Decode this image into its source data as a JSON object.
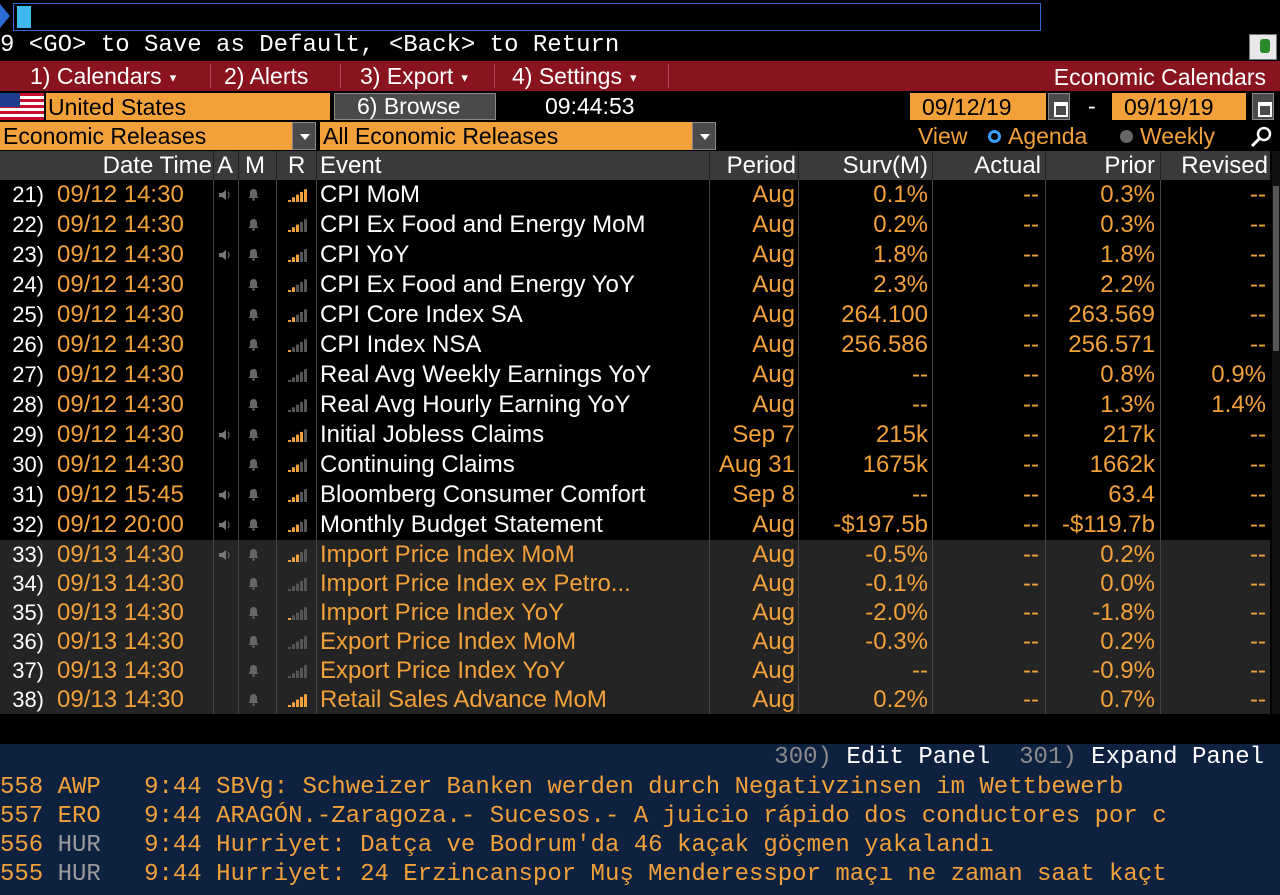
{
  "command": {
    "hint": "9 <GO> to Save as Default, <Back> to Return"
  },
  "menu": {
    "items": [
      {
        "label": "1) Calendars",
        "dropdown": true
      },
      {
        "label": "2) Alerts",
        "dropdown": false
      },
      {
        "label": "3) Export",
        "dropdown": true
      },
      {
        "label": "4) Settings",
        "dropdown": true
      }
    ],
    "title": "Economic Calendars"
  },
  "toolbar": {
    "country": "United States",
    "browse_label": "6) Browse",
    "time": "09:44:53",
    "date_from": "09/12/19",
    "date_to": "09/19/19",
    "date_separator": "-"
  },
  "filters": {
    "category": "Economic Releases",
    "releases": "All Economic Releases",
    "view_label": "View",
    "view_options": [
      "Agenda",
      "Weekly"
    ],
    "selected_view": "Agenda"
  },
  "table": {
    "headers": {
      "datetime": "Date Time",
      "a": "A",
      "m": "M",
      "r": "R",
      "event": "Event",
      "period": "Period",
      "surv": "Surv(M)",
      "actual": "Actual",
      "prior": "Prior",
      "revised": "Revised"
    },
    "rows": [
      {
        "idx": "21)",
        "datetime": "09/12 14:30",
        "audio": true,
        "rel": 5,
        "event": "CPI MoM",
        "period": "Aug",
        "surv": "0.1%",
        "actual": "--",
        "prior": "0.3%",
        "revised": "--",
        "hl": false
      },
      {
        "idx": "22)",
        "datetime": "09/12 14:30",
        "audio": false,
        "rel": 3,
        "event": "CPI Ex Food and Energy MoM",
        "period": "Aug",
        "surv": "0.2%",
        "actual": "--",
        "prior": "0.3%",
        "revised": "--",
        "hl": false
      },
      {
        "idx": "23)",
        "datetime": "09/12 14:30",
        "audio": true,
        "rel": 3,
        "event": "CPI YoY",
        "period": "Aug",
        "surv": "1.8%",
        "actual": "--",
        "prior": "1.8%",
        "revised": "--",
        "hl": false
      },
      {
        "idx": "24)",
        "datetime": "09/12 14:30",
        "audio": false,
        "rel": 2,
        "event": "CPI Ex Food and Energy YoY",
        "period": "Aug",
        "surv": "2.3%",
        "actual": "--",
        "prior": "2.2%",
        "revised": "--",
        "hl": false
      },
      {
        "idx": "25)",
        "datetime": "09/12 14:30",
        "audio": false,
        "rel": 2,
        "event": "CPI Core Index SA",
        "period": "Aug",
        "surv": "264.100",
        "actual": "--",
        "prior": "263.569",
        "revised": "--",
        "hl": false
      },
      {
        "idx": "26)",
        "datetime": "09/12 14:30",
        "audio": false,
        "rel": 1,
        "event": "CPI Index NSA",
        "period": "Aug",
        "surv": "256.586",
        "actual": "--",
        "prior": "256.571",
        "revised": "--",
        "hl": false
      },
      {
        "idx": "27)",
        "datetime": "09/12 14:30",
        "audio": false,
        "rel": 0,
        "event": "Real Avg Weekly Earnings YoY",
        "period": "Aug",
        "surv": "--",
        "actual": "--",
        "prior": "0.8%",
        "revised": "0.9%",
        "hl": false
      },
      {
        "idx": "28)",
        "datetime": "09/12 14:30",
        "audio": false,
        "rel": 0,
        "event": "Real Avg Hourly Earning YoY",
        "period": "Aug",
        "surv": "--",
        "actual": "--",
        "prior": "1.3%",
        "revised": "1.4%",
        "hl": false
      },
      {
        "idx": "29)",
        "datetime": "09/12 14:30",
        "audio": true,
        "rel": 4,
        "event": "Initial Jobless Claims",
        "period": "Sep 7",
        "surv": "215k",
        "actual": "--",
        "prior": "217k",
        "revised": "--",
        "hl": false
      },
      {
        "idx": "30)",
        "datetime": "09/12 14:30",
        "audio": false,
        "rel": 3,
        "event": "Continuing Claims",
        "period": "Aug 31",
        "surv": "1675k",
        "actual": "--",
        "prior": "1662k",
        "revised": "--",
        "hl": false
      },
      {
        "idx": "31)",
        "datetime": "09/12 15:45",
        "audio": true,
        "rel": 3,
        "event": "Bloomberg Consumer Comfort",
        "period": "Sep 8",
        "surv": "--",
        "actual": "--",
        "prior": "63.4",
        "revised": "--",
        "hl": false
      },
      {
        "idx": "32)",
        "datetime": "09/12 20:00",
        "audio": true,
        "rel": 3,
        "event": "Monthly Budget Statement",
        "period": "Aug",
        "surv": "-$197.5b",
        "actual": "--",
        "prior": "-$119.7b",
        "revised": "--",
        "hl": false
      },
      {
        "idx": "33)",
        "datetime": "09/13 14:30",
        "audio": true,
        "rel": 3,
        "event": "Import Price Index MoM",
        "period": "Aug",
        "surv": "-0.5%",
        "actual": "--",
        "prior": "0.2%",
        "revised": "--",
        "hl": true
      },
      {
        "idx": "34)",
        "datetime": "09/13 14:30",
        "audio": false,
        "rel": 0,
        "event": "Import Price Index ex Petro...",
        "period": "Aug",
        "surv": "-0.1%",
        "actual": "--",
        "prior": "0.0%",
        "revised": "--",
        "hl": true
      },
      {
        "idx": "35)",
        "datetime": "09/13 14:30",
        "audio": false,
        "rel": 1,
        "event": "Import Price Index YoY",
        "period": "Aug",
        "surv": "-2.0%",
        "actual": "--",
        "prior": "-1.8%",
        "revised": "--",
        "hl": true
      },
      {
        "idx": "36)",
        "datetime": "09/13 14:30",
        "audio": false,
        "rel": 0,
        "event": "Export Price Index MoM",
        "period": "Aug",
        "surv": "-0.3%",
        "actual": "--",
        "prior": "0.2%",
        "revised": "--",
        "hl": true
      },
      {
        "idx": "37)",
        "datetime": "09/13 14:30",
        "audio": false,
        "rel": 0,
        "event": "Export Price Index YoY",
        "period": "Aug",
        "surv": "--",
        "actual": "--",
        "prior": "-0.9%",
        "revised": "--",
        "hl": true
      },
      {
        "idx": "38)",
        "datetime": "09/13 14:30",
        "audio": false,
        "rel": 5,
        "event": "Retail Sales Advance MoM",
        "period": "Aug",
        "surv": "0.2%",
        "actual": "--",
        "prior": "0.7%",
        "revised": "--",
        "hl": true
      }
    ]
  },
  "panel": {
    "edit_num": "300)",
    "edit_label": "Edit Panel",
    "expand_num": "301)",
    "expand_label": "Expand Panel"
  },
  "news": [
    {
      "num": "558",
      "src": "AWP",
      "time": "9:44",
      "headline": "SBVg: Schweizer Banken werden durch Negativzinsen im Wettbewerb"
    },
    {
      "num": "557",
      "src": "ERO",
      "time": "9:44",
      "headline": "ARAGÓN.-Zaragoza.- Sucesos.- A juicio rápido dos conductores por c"
    },
    {
      "num": "556",
      "src": "HUR",
      "time": "9:44",
      "headline": "Hurriyet: Datça ve Bodrum'da 46 kaçak göçmen yakalandı"
    },
    {
      "num": "555",
      "src": "HUR",
      "time": "9:44",
      "headline": "Hurriyet: 24 Erzincanspor Muş Menderesspor maçı ne zaman saat kaçt"
    }
  ],
  "colors": {
    "menu_bg": "#8a1320",
    "accent_orange": "#f2a13a",
    "panel_bg": "#0e2240",
    "header_bg": "#3a3a3a"
  }
}
